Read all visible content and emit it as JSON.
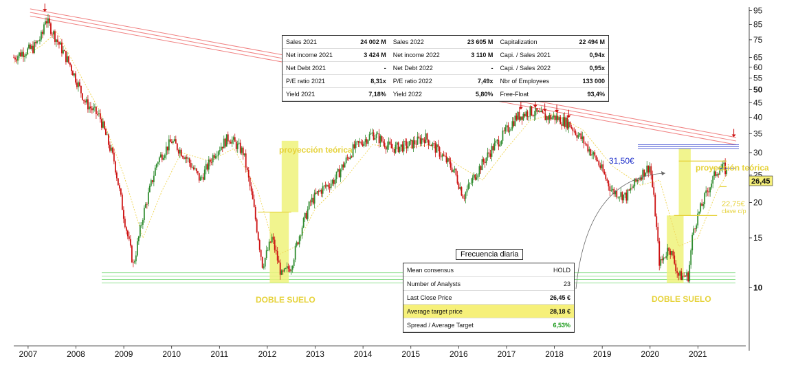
{
  "fundamentals": {
    "rows": [
      [
        {
          "k": "Sales 2021",
          "v": "24 002 M"
        },
        {
          "k": "Sales 2022",
          "v": "23 605 M"
        },
        {
          "k": "Capitalization",
          "v": "22 494 M"
        }
      ],
      [
        {
          "k": "Net income 2021",
          "v": "3 424 M"
        },
        {
          "k": "Net income 2022",
          "v": "3 110 M"
        },
        {
          "k": "Capi. / Sales 2021",
          "v": "0,94x"
        }
      ],
      [
        {
          "k": "Net Debt 2021",
          "v": "-"
        },
        {
          "k": "Net Debt 2022",
          "v": "-"
        },
        {
          "k": "Capi. / Sales 2022",
          "v": "0,95x"
        }
      ],
      [
        {
          "k": "P/E ratio 2021",
          "v": "8,31x"
        },
        {
          "k": "P/E ratio 2022",
          "v": "7,49x"
        },
        {
          "k": "Nbr of Employees",
          "v": "133 000"
        }
      ],
      [
        {
          "k": "Yield 2021",
          "v": "7,18%"
        },
        {
          "k": "Yield 2022",
          "v": "5,80%"
        },
        {
          "k": "Free-Float",
          "v": "93,4%"
        }
      ]
    ]
  },
  "consensus": {
    "frequency_label": "Frecuencia diaria",
    "rows": [
      {
        "k": "Mean consensus",
        "v": "HOLD",
        "highlight": false
      },
      {
        "k": "Number of Analysts",
        "v": "23",
        "highlight": false
      },
      {
        "k": "Last Close Price",
        "v": "26,45 €",
        "highlight": false
      },
      {
        "k": "Average target price",
        "v": "28,18 €",
        "highlight": true
      },
      {
        "k": "Spread / Average Target",
        "v": "6,53%",
        "highlight": false,
        "color": "#1a9a1a"
      }
    ]
  },
  "annotations": {
    "proyeccion_left": "proyección teórica",
    "proyeccion_right": "proyección teórica",
    "doble_suelo_left": "DOBLE SUELO",
    "doble_suelo_right": "DOBLE SUELO",
    "resistance_label": "31,50€",
    "last_price_label": "26,45",
    "support_label": "22,75€",
    "support_sub": "clave c/p"
  },
  "colors": {
    "up": "#2e8b2e",
    "down": "#cc1111",
    "trendline": "#f08080",
    "support": "#8fe08f",
    "projection_fill": "#eef27a",
    "resistance": "#2233cc",
    "annotation_yellow": "#e6d23a",
    "ma": "#f0d860"
  },
  "chart_data": {
    "type": "candlestick",
    "scale": "log",
    "ylim": [
      6,
      98
    ],
    "xlim": [
      2006.7,
      2022.0
    ],
    "y_ticks": [
      10,
      15,
      20,
      25,
      30,
      35,
      40,
      45,
      50,
      55,
      60,
      65,
      75,
      85,
      95
    ],
    "x_ticks": [
      "2007",
      "2008",
      "2009",
      "2010",
      "2011",
      "2012",
      "2013",
      "2014",
      "2015",
      "2016",
      "2017",
      "2018",
      "2019",
      "2020",
      "2021"
    ],
    "price_path": [
      [
        2006.7,
        65
      ],
      [
        2006.9,
        68
      ],
      [
        2007.1,
        70
      ],
      [
        2007.3,
        78
      ],
      [
        2007.35,
        90
      ],
      [
        2007.6,
        75
      ],
      [
        2007.9,
        60
      ],
      [
        2008.2,
        45
      ],
      [
        2008.5,
        40
      ],
      [
        2008.8,
        28
      ],
      [
        2009.0,
        18
      ],
      [
        2009.2,
        12
      ],
      [
        2009.4,
        18
      ],
      [
        2009.7,
        28
      ],
      [
        2010.0,
        33
      ],
      [
        2010.3,
        29
      ],
      [
        2010.6,
        24
      ],
      [
        2010.9,
        30
      ],
      [
        2011.2,
        34
      ],
      [
        2011.5,
        30
      ],
      [
        2011.7,
        20
      ],
      [
        2011.9,
        12
      ],
      [
        2012.1,
        15
      ],
      [
        2012.3,
        11
      ],
      [
        2012.5,
        12
      ],
      [
        2012.7,
        16
      ],
      [
        2012.9,
        20
      ],
      [
        2013.1,
        22
      ],
      [
        2013.4,
        24
      ],
      [
        2013.8,
        31
      ],
      [
        2014.2,
        35
      ],
      [
        2014.6,
        31
      ],
      [
        2015.0,
        32
      ],
      [
        2015.3,
        34
      ],
      [
        2015.6,
        30
      ],
      [
        2015.9,
        26
      ],
      [
        2016.1,
        21
      ],
      [
        2016.4,
        26
      ],
      [
        2016.7,
        31
      ],
      [
        2016.9,
        34
      ],
      [
        2017.2,
        40
      ],
      [
        2017.5,
        42
      ],
      [
        2017.8,
        40
      ],
      [
        2018.0,
        40
      ],
      [
        2018.3,
        38
      ],
      [
        2018.6,
        33
      ],
      [
        2018.9,
        28
      ],
      [
        2019.2,
        22
      ],
      [
        2019.5,
        21
      ],
      [
        2019.8,
        25
      ],
      [
        2020.0,
        27
      ],
      [
        2020.1,
        19
      ],
      [
        2020.2,
        12
      ],
      [
        2020.4,
        14
      ],
      [
        2020.6,
        11
      ],
      [
        2020.8,
        11
      ],
      [
        2020.9,
        16
      ],
      [
        2021.0,
        18
      ],
      [
        2021.2,
        22
      ],
      [
        2021.4,
        26
      ],
      [
        2021.55,
        26.5
      ],
      [
        2021.6,
        25.5
      ]
    ],
    "ma_path": [
      [
        2006.7,
        62
      ],
      [
        2007.3,
        72
      ],
      [
        2007.6,
        80
      ],
      [
        2008.0,
        60
      ],
      [
        2008.5,
        42
      ],
      [
        2009.0,
        25
      ],
      [
        2009.4,
        15
      ],
      [
        2009.8,
        22
      ],
      [
        2010.2,
        30
      ],
      [
        2010.8,
        28
      ],
      [
        2011.3,
        31
      ],
      [
        2011.8,
        22
      ],
      [
        2012.2,
        13
      ],
      [
        2012.6,
        14
      ],
      [
        2013.0,
        19
      ],
      [
        2013.6,
        24
      ],
      [
        2014.2,
        32
      ],
      [
        2014.8,
        31
      ],
      [
        2015.4,
        32
      ],
      [
        2016.0,
        27
      ],
      [
        2016.5,
        24
      ],
      [
        2017.0,
        31
      ],
      [
        2017.5,
        39
      ],
      [
        2018.0,
        41
      ],
      [
        2018.6,
        36
      ],
      [
        2019.2,
        27
      ],
      [
        2019.8,
        23
      ],
      [
        2020.2,
        24
      ],
      [
        2020.6,
        14
      ],
      [
        2021.0,
        15
      ],
      [
        2021.4,
        22
      ],
      [
        2021.6,
        25
      ]
    ],
    "trendlines": [
      {
        "from": [
          2007.3,
          91
        ],
        "to": [
          2021.8,
          32
        ],
        "offsets": [
          1.0,
          1.03,
          1.06
        ]
      }
    ],
    "support_levels": [
      10.4,
      10.7,
      11.0,
      11.3
    ],
    "resistance_levels": [
      31.0,
      31.5,
      32.0
    ],
    "reference_levels": [
      {
        "value": 18.5,
        "from": 2011.8,
        "to": 2012.5
      },
      {
        "value": 28.0,
        "from": 2020.6,
        "to": 2021.6
      },
      {
        "value": 18.0,
        "from": 2020.5,
        "to": 2021.4
      },
      {
        "value": 22.75,
        "from": 2021.45,
        "to": 2021.6
      },
      {
        "value": 26.45,
        "from": 2021.3,
        "to": 2021.8
      }
    ],
    "projection_bars": [
      {
        "x0": 2012.3,
        "x1": 2012.65,
        "y_low": 18.5,
        "y_high": 33
      },
      {
        "x0": 2020.6,
        "x1": 2020.85,
        "y_low": 18,
        "y_high": 31
      }
    ],
    "double_bottom_bars": [
      {
        "x0": 2012.05,
        "x1": 2012.45,
        "y_low": 10.4,
        "y_high": 18.5
      },
      {
        "x0": 2020.35,
        "x1": 2020.7,
        "y_low": 10.4,
        "y_high": 18
      }
    ],
    "top_arrows": [
      2007.35,
      2017.3,
      2017.6,
      2017.8,
      2018.05,
      2018.3,
      2021.75
    ],
    "last_price": 26.45,
    "resistance": 31.5,
    "support": 22.75
  }
}
